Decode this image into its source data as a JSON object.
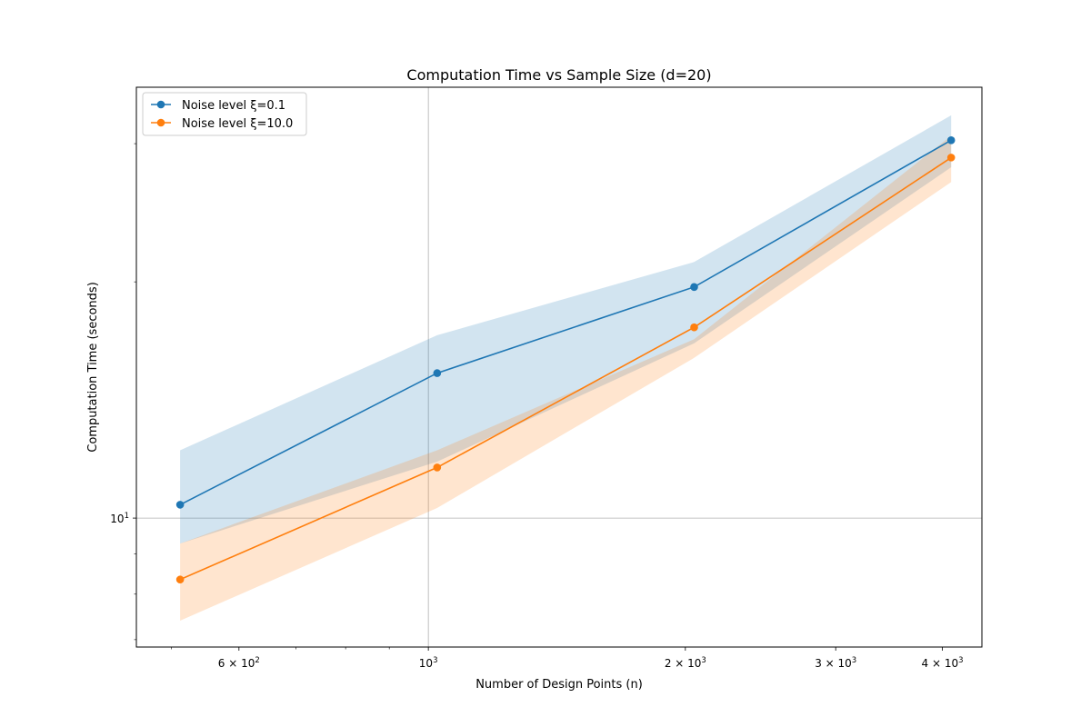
{
  "chart_data": {
    "type": "line",
    "scale": {
      "x": "log",
      "y": "log"
    },
    "title": "Computation Time vs Sample Size (d=20)",
    "xlabel": "Number of Design Points (n)",
    "ylabel": "Computation Time (seconds)",
    "xlim": [
      455,
      4450
    ],
    "ylim": [
      6.85,
      35.4
    ],
    "grid": "major",
    "x": [
      512,
      1024,
      2048,
      4096
    ],
    "series": [
      {
        "name": "Noise level ξ=0.1",
        "color": "#1f77b4",
        "band_opacity": 0.2,
        "values": [
          10.4,
          15.3,
          19.7,
          30.3
        ],
        "lower": [
          9.28,
          11.8,
          16.7,
          28.0
        ],
        "upper": [
          12.2,
          17.1,
          21.2,
          32.6
        ]
      },
      {
        "name": "Noise level ξ=10.0",
        "color": "#ff7f0e",
        "band_opacity": 0.2,
        "values": [
          8.35,
          11.6,
          17.5,
          28.8
        ],
        "lower": [
          7.4,
          10.3,
          16.0,
          26.8
        ],
        "upper": [
          9.28,
          12.2,
          16.9,
          30.7
        ]
      }
    ],
    "x_ticks": [
      {
        "value": 600,
        "base": "6 × 10",
        "exp": "2"
      },
      {
        "value": 1000,
        "base": "10",
        "exp": "3"
      },
      {
        "value": 2000,
        "base": "2 × 10",
        "exp": "3"
      },
      {
        "value": 3000,
        "base": "3 × 10",
        "exp": "3"
      },
      {
        "value": 4000,
        "base": "4 × 10",
        "exp": "3"
      }
    ],
    "x_minor_ticks": [
      500,
      700,
      800,
      900
    ],
    "y_ticks": [
      {
        "value": 10,
        "base": "10",
        "exp": "1"
      }
    ],
    "y_minor_ticks": [
      7,
      8,
      9,
      20,
      30
    ],
    "legend": {
      "position": "top-left"
    }
  }
}
